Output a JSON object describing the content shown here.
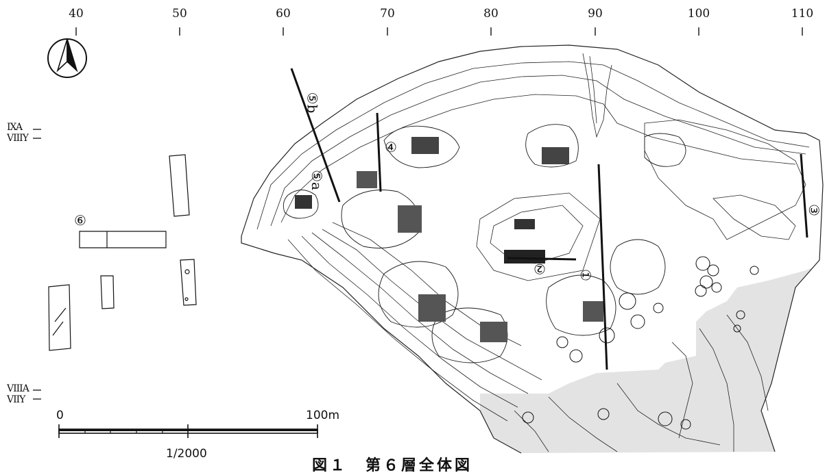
{
  "colors": {
    "ink": "#111111",
    "shade": "#e3e3e3",
    "paper": "#ffffff"
  },
  "icons": {
    "north": "north-arrow-icon"
  },
  "top_axis": {
    "ticks": [
      "40",
      "50",
      "60",
      "70",
      "80",
      "90",
      "100",
      "110"
    ]
  },
  "grid_labels": {
    "ixa": "IXA",
    "viiiy": "VIIIY",
    "viiia": "VIIIA",
    "viiy": "VIIY"
  },
  "trench_labels": {
    "t1": "①",
    "t2": "②",
    "t3": "③",
    "t4": "④",
    "t5a": "⑤a",
    "t5b": "⑤b",
    "t6": "⑥"
  },
  "scale_bar": {
    "start": "0",
    "end": "100m",
    "ratio": "1/2000"
  },
  "caption": "図１　第６層全体図"
}
